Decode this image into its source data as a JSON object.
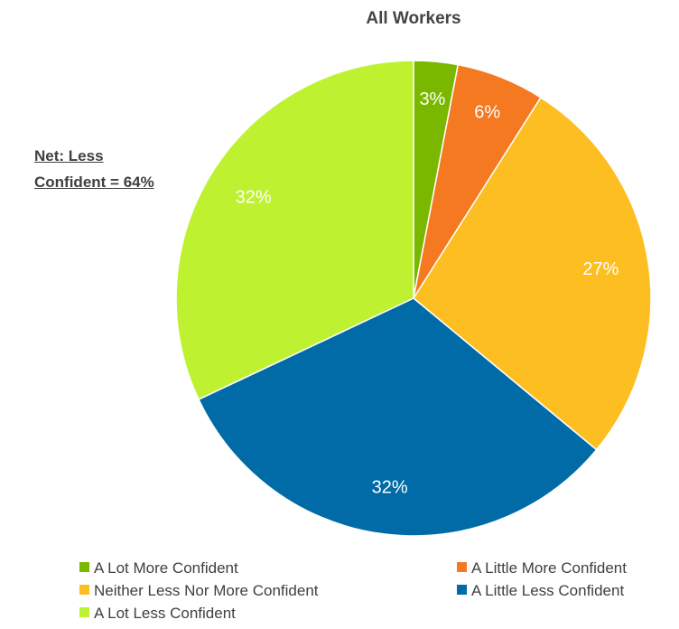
{
  "chart_data": {
    "type": "pie",
    "title": "All Workers",
    "start_angle_deg": 0,
    "direction": "clockwise",
    "slices": [
      {
        "label": "A Lot More Confident",
        "value": 3,
        "display": "3%",
        "color": "#7AB800"
      },
      {
        "label": "A Little More Confident",
        "value": 6,
        "display": "6%",
        "color": "#F47920"
      },
      {
        "label": "Neither Less Nor More Confident",
        "value": 27,
        "display": "27%",
        "color": "#FDBE21"
      },
      {
        "label": "A Little Less Confident",
        "value": 32,
        "display": "32%",
        "color": "#006BA6"
      },
      {
        "label": "A Lot Less Confident",
        "value": 32,
        "display": "32%",
        "color": "#BEF231"
      }
    ],
    "label_color": "#ffffff",
    "legend_position": "bottom"
  },
  "annotation": {
    "line1": "Net: Less",
    "line2": "Confident = 64%"
  }
}
